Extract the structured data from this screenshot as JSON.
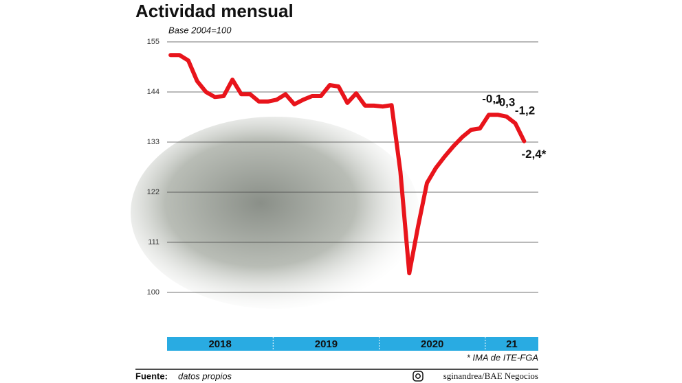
{
  "chart_data": {
    "type": "line",
    "title": "Actividad mensual",
    "subtitle": "Base 2004=100",
    "categories": [
      null,
      null,
      null,
      null,
      null,
      null,
      null,
      null,
      null,
      null,
      null,
      null,
      null,
      null,
      null,
      null,
      null,
      null,
      null,
      null,
      null,
      null,
      null,
      null,
      null,
      null,
      null,
      null,
      null,
      null,
      null,
      null,
      null,
      null,
      null,
      null,
      null,
      null,
      null,
      null,
      null
    ],
    "series": [
      {
        "color": "#e8141b",
        "values": [
          152.1,
          152.1,
          150.9,
          146.4,
          144,
          142.9,
          143.1,
          146.7,
          143.5,
          143.5,
          141.9,
          141.9,
          142.3,
          143.5,
          141.3,
          142.3,
          143.1,
          143.1,
          145.5,
          145.2,
          141.6,
          143.7,
          141,
          141,
          140.8,
          141.1,
          126.5,
          104.2,
          114.5,
          124,
          127.3,
          129.8,
          132.1,
          134.1,
          135.7,
          136,
          139,
          139,
          138.6,
          137.1,
          133.2
        ]
      }
    ],
    "changes": {
      "values": [
        null,
        null,
        null,
        null,
        null,
        null,
        null,
        null,
        null,
        null,
        null,
        null,
        null,
        null,
        null,
        null,
        null,
        null,
        null,
        null,
        null,
        null,
        null,
        null,
        null,
        null,
        null,
        null,
        null,
        null,
        null,
        null,
        null,
        null,
        null,
        null,
        null,
        -0.1,
        -0.3,
        -1.2,
        -2.4
      ],
      "value_labels": [
        null,
        null,
        null,
        null,
        null,
        null,
        null,
        null,
        null,
        null,
        null,
        null,
        null,
        null,
        null,
        null,
        null,
        null,
        null,
        null,
        null,
        null,
        null,
        null,
        null,
        null,
        null,
        null,
        null,
        null,
        null,
        null,
        null,
        null,
        null,
        null,
        null,
        "-0,1",
        "-0,3",
        "-1,2",
        "-2,4*"
      ]
    },
    "periods": [
      {
        "label": "2018",
        "months": 12
      },
      {
        "label": "2019",
        "months": 12
      },
      {
        "label": "2020",
        "months": 12
      },
      {
        "label": "21",
        "months": 6
      }
    ],
    "period_color": "#29abe2",
    "ylim": [
      100,
      155
    ],
    "yticks": [
      100,
      111,
      122,
      133,
      144,
      155
    ],
    "grid": true,
    "footnote": "* IMA de ITE-FGA",
    "source_label": "Fuente:",
    "source": "datos propios",
    "credit": "sginandrea/BAE Negocios"
  }
}
